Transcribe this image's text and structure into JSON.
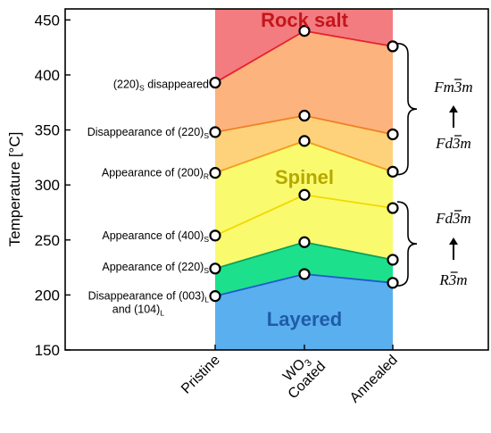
{
  "chart_data": {
    "type": "line",
    "title": "",
    "xlabel": "",
    "ylabel": "Temperature [°C]",
    "ylim": [
      150,
      460
    ],
    "yticks": [
      150,
      200,
      250,
      300,
      350,
      400,
      450
    ],
    "categories": [
      {
        "main": "Pristine",
        "pre": "",
        "sub": "",
        "post": ""
      },
      {
        "main": "Coated",
        "pre": "WO",
        "sub": "3",
        "post": ""
      },
      {
        "main": "Annealed",
        "pre": "",
        "sub": "",
        "post": ""
      }
    ],
    "series": [
      {
        "values": [
          199,
          219,
          211
        ],
        "color": "#1f5ccc",
        "label": {
          "pre": "Disappearance of (003)",
          "sub": "L",
          "post": "",
          "line2pre": "and (104)",
          "line2sub": "L"
        }
      },
      {
        "values": [
          224,
          248,
          232
        ],
        "color": "#0aa35a",
        "label": {
          "pre": "Appearance of (220)",
          "sub": "S",
          "post": ""
        }
      },
      {
        "values": [
          254,
          291,
          279
        ],
        "color": "#f2d800",
        "label": {
          "pre": "Appearance of (400)",
          "sub": "S",
          "post": ""
        }
      },
      {
        "values": [
          311,
          340,
          312
        ],
        "color": "#f39b1e",
        "label": {
          "pre": "Appearance of (200)",
          "sub": "R",
          "post": ""
        }
      },
      {
        "values": [
          348,
          363,
          346
        ],
        "color": "#f07f23",
        "label": {
          "pre": "Disappearance of (220)",
          "sub": "S",
          "post": ""
        }
      },
      {
        "values": [
          393,
          440,
          426
        ],
        "color": "#e8212a",
        "label": {
          "pre": "(220)",
          "sub": "S",
          "post": " disappeared"
        }
      }
    ],
    "regions": [
      {
        "name": "Rock salt",
        "color": "#c4161c"
      },
      {
        "name": "Spinel",
        "color": "#b5a800"
      },
      {
        "name": "Layered",
        "color": "#1f5ba8"
      }
    ],
    "phase_transitions": [
      {
        "from": "R3m",
        "to": "Fd3m"
      },
      {
        "from": "Fd3m",
        "to": "Fm3m"
      }
    ],
    "fill_colors": {
      "layered": "#5aafef",
      "green": "#1de08c",
      "yellow": "#fafa6e",
      "orange_light": "#fdd27a",
      "orange": "#fdb37e",
      "red": "#f27c80"
    }
  }
}
